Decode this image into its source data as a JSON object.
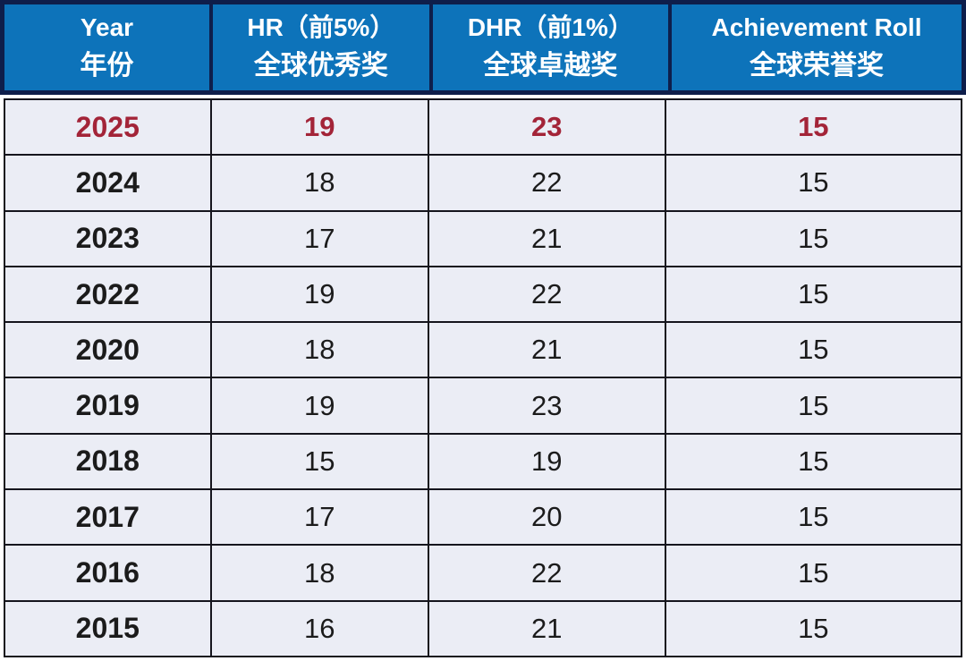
{
  "colors": {
    "page_bg": "#ffffff",
    "frame_navy": "#0e1e4b",
    "header_bg": "#0d73ba",
    "header_text": "#ffffff",
    "grid_line": "#15151d",
    "cell_bg": "#ebedf5",
    "body_text": "#1b1b1b",
    "highlight_red": "#a32438"
  },
  "chart_data": {
    "type": "table",
    "columns": [
      {
        "id": "year",
        "line1": "Year",
        "line2": "年份"
      },
      {
        "id": "hr",
        "line1": "HR（前5%）",
        "line2": "全球优秀奖"
      },
      {
        "id": "dhr",
        "line1": "DHR（前1%）",
        "line2": "全球卓越奖"
      },
      {
        "id": "ar",
        "line1": "Achievement Roll",
        "line2": "全球荣誉奖"
      }
    ],
    "highlighted_row_year": "2025",
    "rows": [
      {
        "year": "2025",
        "hr": 19,
        "dhr": 23,
        "ar": 15,
        "highlight": true
      },
      {
        "year": "2024",
        "hr": 18,
        "dhr": 22,
        "ar": 15,
        "highlight": false
      },
      {
        "year": "2023",
        "hr": 17,
        "dhr": 21,
        "ar": 15,
        "highlight": false
      },
      {
        "year": "2022",
        "hr": 19,
        "dhr": 22,
        "ar": 15,
        "highlight": false
      },
      {
        "year": "2020",
        "hr": 18,
        "dhr": 21,
        "ar": 15,
        "highlight": false
      },
      {
        "year": "2019",
        "hr": 19,
        "dhr": 23,
        "ar": 15,
        "highlight": false
      },
      {
        "year": "2018",
        "hr": 15,
        "dhr": 19,
        "ar": 15,
        "highlight": false
      },
      {
        "year": "2017",
        "hr": 17,
        "dhr": 20,
        "ar": 15,
        "highlight": false
      },
      {
        "year": "2016",
        "hr": 18,
        "dhr": 22,
        "ar": 15,
        "highlight": false
      },
      {
        "year": "2015",
        "hr": 16,
        "dhr": 21,
        "ar": 15,
        "highlight": false
      }
    ]
  }
}
